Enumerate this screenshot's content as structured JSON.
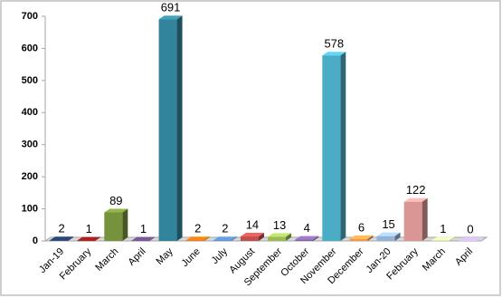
{
  "chart_data": {
    "type": "bar",
    "categories": [
      "Jan-19",
      "February",
      "March",
      "April",
      "May",
      "June",
      "July",
      "August",
      "September",
      "October",
      "November",
      "December",
      "Jan-20",
      "February",
      "March",
      "April"
    ],
    "values": [
      2,
      1,
      89,
      1,
      691,
      2,
      2,
      14,
      13,
      4,
      578,
      6,
      15,
      122,
      1,
      0
    ],
    "colors": [
      "#1f3864",
      "#8b1a1a",
      "#76923c",
      "#5f497a",
      "#31849b",
      "#e36c09",
      "#4f81bd",
      "#c0504d",
      "#9bbb59",
      "#8064a2",
      "#4bacc6",
      "#f79646",
      "#95b3d7",
      "#d99694",
      "#c3d69b",
      "#b2a1c7"
    ],
    "ylim": [
      0,
      700
    ],
    "yticks": [
      0,
      100,
      200,
      300,
      400,
      500,
      600,
      700
    ],
    "grid": false
  }
}
